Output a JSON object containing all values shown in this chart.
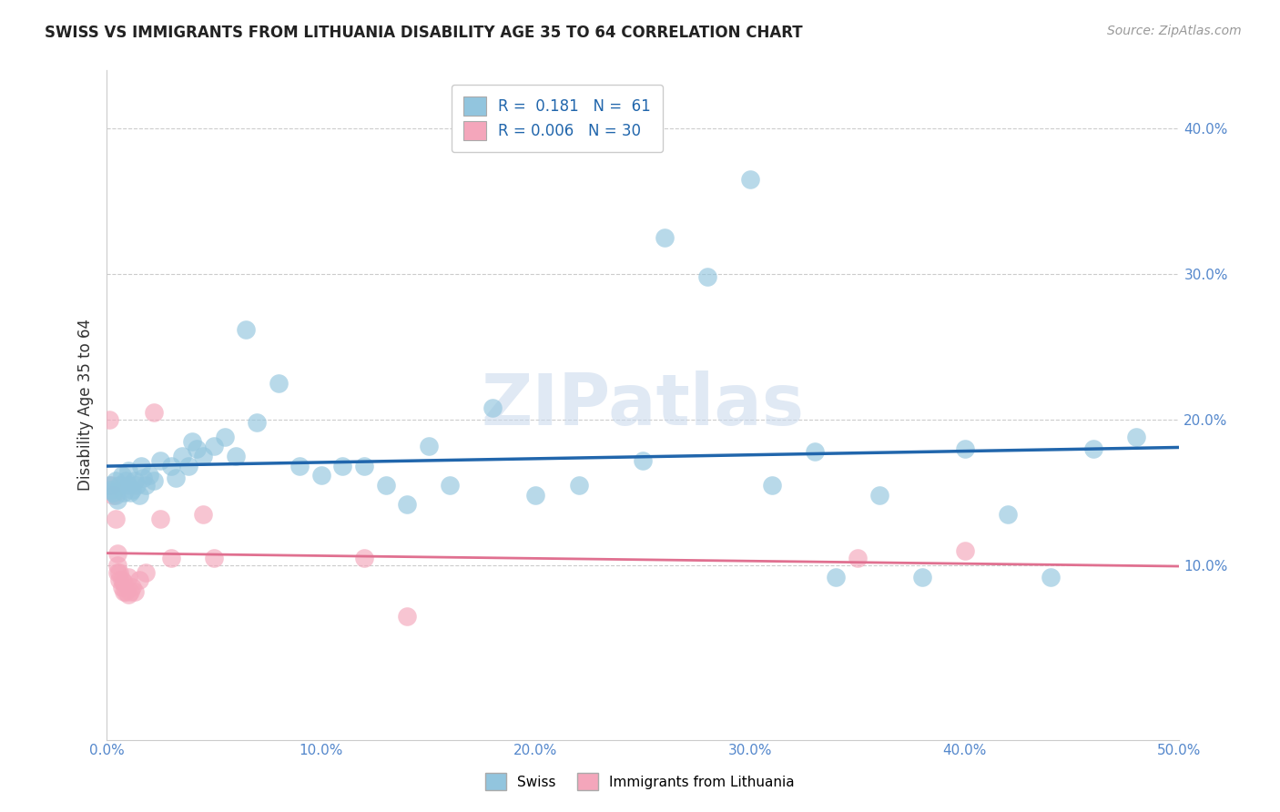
{
  "title": "SWISS VS IMMIGRANTS FROM LITHUANIA DISABILITY AGE 35 TO 64 CORRELATION CHART",
  "source": "Source: ZipAtlas.com",
  "ylabel": "Disability Age 35 to 64",
  "xlim": [
    0.0,
    0.5
  ],
  "ylim": [
    -0.02,
    0.44
  ],
  "xticks": [
    0.0,
    0.1,
    0.2,
    0.3,
    0.4,
    0.5
  ],
  "yticks": [
    0.1,
    0.2,
    0.3,
    0.4
  ],
  "legend_label1": "Swiss",
  "legend_label2": "Immigrants from Lithuania",
  "R1": "0.181",
  "N1": "61",
  "R2": "0.006",
  "N2": "30",
  "blue_color": "#92c5de",
  "pink_color": "#f4a6bb",
  "line_blue": "#2166ac",
  "line_pink": "#e07090",
  "watermark": "ZIPatlas",
  "swiss_x": [
    0.001,
    0.002,
    0.003,
    0.004,
    0.004,
    0.005,
    0.006,
    0.007,
    0.008,
    0.009,
    0.01,
    0.01,
    0.011,
    0.012,
    0.013,
    0.014,
    0.015,
    0.016,
    0.017,
    0.018,
    0.02,
    0.022,
    0.025,
    0.03,
    0.032,
    0.035,
    0.038,
    0.04,
    0.042,
    0.045,
    0.05,
    0.055,
    0.06,
    0.065,
    0.07,
    0.08,
    0.09,
    0.1,
    0.11,
    0.12,
    0.13,
    0.14,
    0.15,
    0.16,
    0.18,
    0.2,
    0.22,
    0.25,
    0.26,
    0.28,
    0.3,
    0.31,
    0.33,
    0.34,
    0.36,
    0.38,
    0.4,
    0.42,
    0.44,
    0.46,
    0.48
  ],
  "swiss_y": [
    0.155,
    0.152,
    0.15,
    0.148,
    0.158,
    0.145,
    0.155,
    0.162,
    0.15,
    0.158,
    0.155,
    0.165,
    0.15,
    0.152,
    0.158,
    0.155,
    0.148,
    0.168,
    0.16,
    0.155,
    0.162,
    0.158,
    0.172,
    0.168,
    0.16,
    0.175,
    0.168,
    0.185,
    0.18,
    0.175,
    0.182,
    0.188,
    0.175,
    0.262,
    0.198,
    0.225,
    0.168,
    0.162,
    0.168,
    0.168,
    0.155,
    0.142,
    0.182,
    0.155,
    0.208,
    0.148,
    0.155,
    0.172,
    0.325,
    0.298,
    0.365,
    0.155,
    0.178,
    0.092,
    0.148,
    0.092,
    0.18,
    0.135,
    0.092,
    0.18,
    0.188
  ],
  "lith_x": [
    0.001,
    0.002,
    0.003,
    0.004,
    0.005,
    0.005,
    0.005,
    0.006,
    0.006,
    0.007,
    0.007,
    0.008,
    0.008,
    0.009,
    0.01,
    0.01,
    0.011,
    0.012,
    0.013,
    0.015,
    0.018,
    0.022,
    0.025,
    0.03,
    0.045,
    0.05,
    0.12,
    0.14,
    0.35,
    0.4
  ],
  "lith_y": [
    0.2,
    0.155,
    0.148,
    0.132,
    0.108,
    0.1,
    0.095,
    0.095,
    0.09,
    0.09,
    0.085,
    0.088,
    0.082,
    0.082,
    0.08,
    0.092,
    0.082,
    0.085,
    0.082,
    0.09,
    0.095,
    0.205,
    0.132,
    0.105,
    0.135,
    0.105,
    0.105,
    0.065,
    0.105,
    0.11
  ]
}
